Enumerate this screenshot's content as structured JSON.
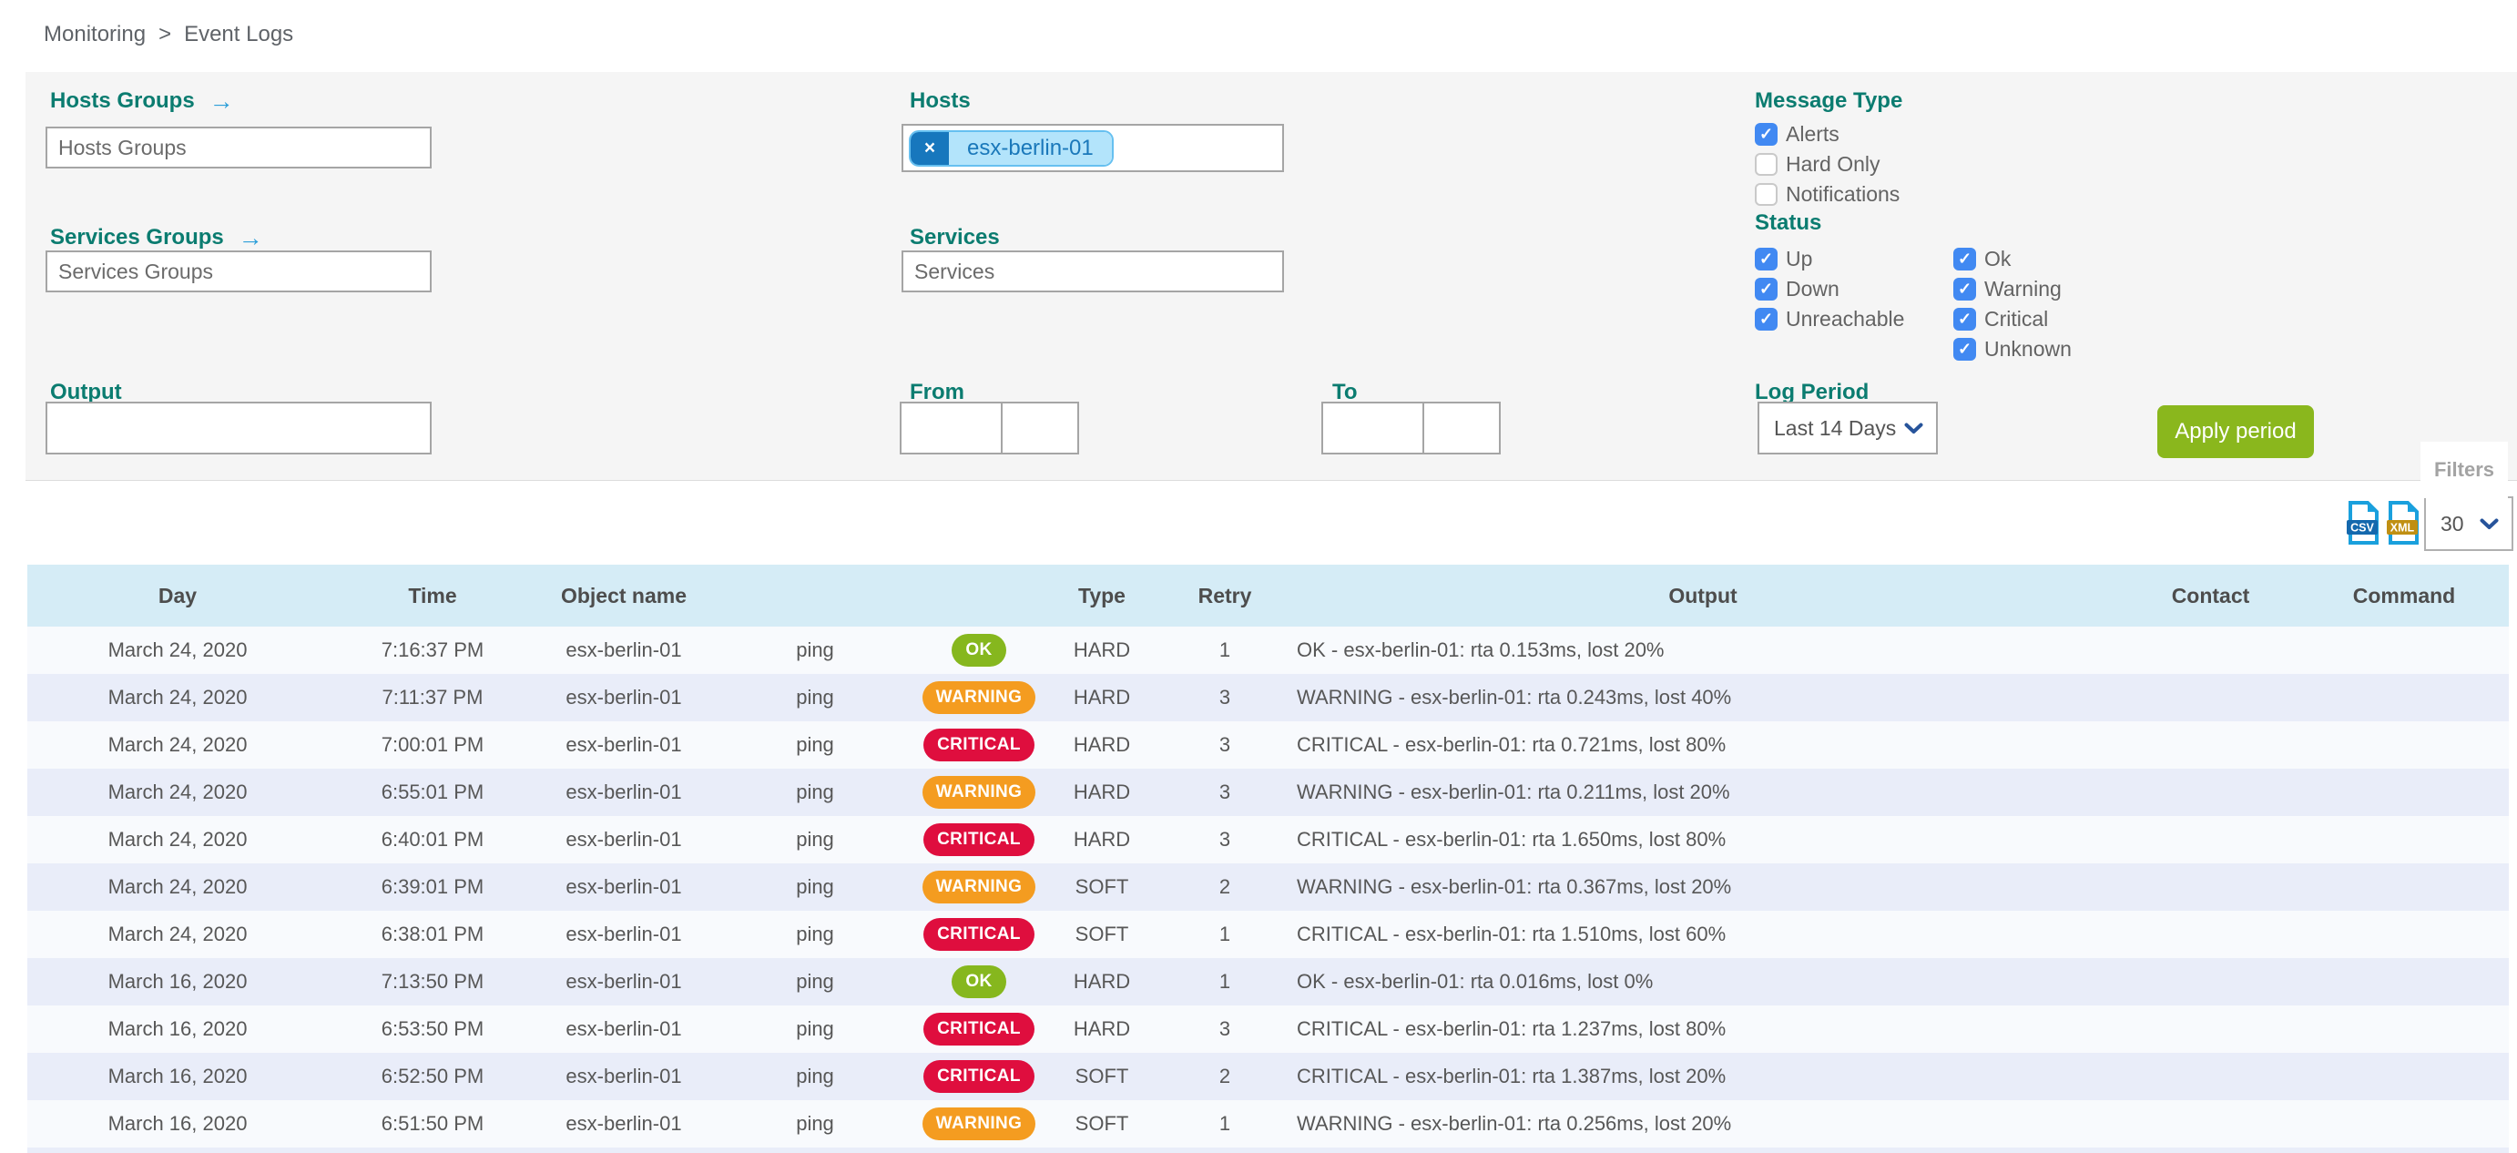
{
  "breadcrumb": {
    "items": [
      "Monitoring",
      "Event Logs"
    ],
    "separator": ">"
  },
  "filters": {
    "hosts_groups": {
      "label": "Hosts Groups",
      "placeholder": "Hosts Groups"
    },
    "services_groups": {
      "label": "Services Groups",
      "placeholder": "Services Groups"
    },
    "hosts": {
      "label": "Hosts",
      "chip": "esx-berlin-01",
      "chip_remove": "×"
    },
    "services": {
      "label": "Services",
      "placeholder": "Services"
    },
    "output": {
      "label": "Output",
      "value": ""
    },
    "from": {
      "label": "From",
      "date_value": "",
      "time_value": ""
    },
    "to": {
      "label": "To",
      "date_value": "",
      "time_value": ""
    },
    "message_type": {
      "label": "Message Type",
      "options": [
        {
          "label": "Alerts",
          "checked": true
        },
        {
          "label": "Hard Only",
          "checked": false
        },
        {
          "label": "Notifications",
          "checked": false
        }
      ]
    },
    "status": {
      "label": "Status",
      "column1": [
        {
          "label": "Up",
          "checked": true
        },
        {
          "label": "Down",
          "checked": true
        },
        {
          "label": "Unreachable",
          "checked": true
        }
      ],
      "column2": [
        {
          "label": "Ok",
          "checked": true
        },
        {
          "label": "Warning",
          "checked": true
        },
        {
          "label": "Critical",
          "checked": true
        },
        {
          "label": "Unknown",
          "checked": true
        }
      ]
    },
    "log_period": {
      "label": "Log Period",
      "value": "Last 14 Days"
    },
    "apply_button": "Apply period",
    "filters_tab": "Filters"
  },
  "export": {
    "csv_text": "CSV",
    "xml_text": "XML",
    "page_size": "30"
  },
  "table": {
    "columns": [
      "Day",
      "Time",
      "Object name",
      "",
      "",
      "Type",
      "Retry",
      "Output",
      "Contact",
      "Command"
    ],
    "rows": [
      {
        "day": "March 24, 2020",
        "time": "7:16:37 PM",
        "object": "esx-berlin-01",
        "service": "ping",
        "status": "OK",
        "type": "HARD",
        "retry": "1",
        "output": "OK - esx-berlin-01: rta 0.153ms, lost 20%",
        "contact": "",
        "command": ""
      },
      {
        "day": "March 24, 2020",
        "time": "7:11:37 PM",
        "object": "esx-berlin-01",
        "service": "ping",
        "status": "WARNING",
        "type": "HARD",
        "retry": "3",
        "output": "WARNING - esx-berlin-01: rta 0.243ms, lost 40%",
        "contact": "",
        "command": ""
      },
      {
        "day": "March 24, 2020",
        "time": "7:00:01 PM",
        "object": "esx-berlin-01",
        "service": "ping",
        "status": "CRITICAL",
        "type": "HARD",
        "retry": "3",
        "output": "CRITICAL - esx-berlin-01: rta 0.721ms, lost 80%",
        "contact": "",
        "command": ""
      },
      {
        "day": "March 24, 2020",
        "time": "6:55:01 PM",
        "object": "esx-berlin-01",
        "service": "ping",
        "status": "WARNING",
        "type": "HARD",
        "retry": "3",
        "output": "WARNING - esx-berlin-01: rta 0.211ms, lost 20%",
        "contact": "",
        "command": ""
      },
      {
        "day": "March 24, 2020",
        "time": "6:40:01 PM",
        "object": "esx-berlin-01",
        "service": "ping",
        "status": "CRITICAL",
        "type": "HARD",
        "retry": "3",
        "output": "CRITICAL - esx-berlin-01: rta 1.650ms, lost 80%",
        "contact": "",
        "command": ""
      },
      {
        "day": "March 24, 2020",
        "time": "6:39:01 PM",
        "object": "esx-berlin-01",
        "service": "ping",
        "status": "WARNING",
        "type": "SOFT",
        "retry": "2",
        "output": "WARNING - esx-berlin-01: rta 0.367ms, lost 20%",
        "contact": "",
        "command": ""
      },
      {
        "day": "March 24, 2020",
        "time": "6:38:01 PM",
        "object": "esx-berlin-01",
        "service": "ping",
        "status": "CRITICAL",
        "type": "SOFT",
        "retry": "1",
        "output": "CRITICAL - esx-berlin-01: rta 1.510ms, lost 60%",
        "contact": "",
        "command": ""
      },
      {
        "day": "March 16, 2020",
        "time": "7:13:50 PM",
        "object": "esx-berlin-01",
        "service": "ping",
        "status": "OK",
        "type": "HARD",
        "retry": "1",
        "output": "OK - esx-berlin-01: rta 0.016ms, lost 0%",
        "contact": "",
        "command": ""
      },
      {
        "day": "March 16, 2020",
        "time": "6:53:50 PM",
        "object": "esx-berlin-01",
        "service": "ping",
        "status": "CRITICAL",
        "type": "HARD",
        "retry": "3",
        "output": "CRITICAL - esx-berlin-01: rta 1.237ms, lost 80%",
        "contact": "",
        "command": ""
      },
      {
        "day": "March 16, 2020",
        "time": "6:52:50 PM",
        "object": "esx-berlin-01",
        "service": "ping",
        "status": "CRITICAL",
        "type": "SOFT",
        "retry": "2",
        "output": "CRITICAL - esx-berlin-01: rta 1.387ms, lost 20%",
        "contact": "",
        "command": ""
      },
      {
        "day": "March 16, 2020",
        "time": "6:51:50 PM",
        "object": "esx-berlin-01",
        "service": "ping",
        "status": "WARNING",
        "type": "SOFT",
        "retry": "1",
        "output": "WARNING - esx-berlin-01: rta 0.256ms, lost 20%",
        "contact": "",
        "command": ""
      }
    ]
  },
  "colors": {
    "ok": "#86b71e",
    "warning": "#f49c20",
    "critical": "#df0e3e",
    "label_teal": "#0b7c70",
    "checkbox_blue": "#4189f2",
    "apply_green": "#8ab71d",
    "header_bg": "#d5ecf6"
  }
}
